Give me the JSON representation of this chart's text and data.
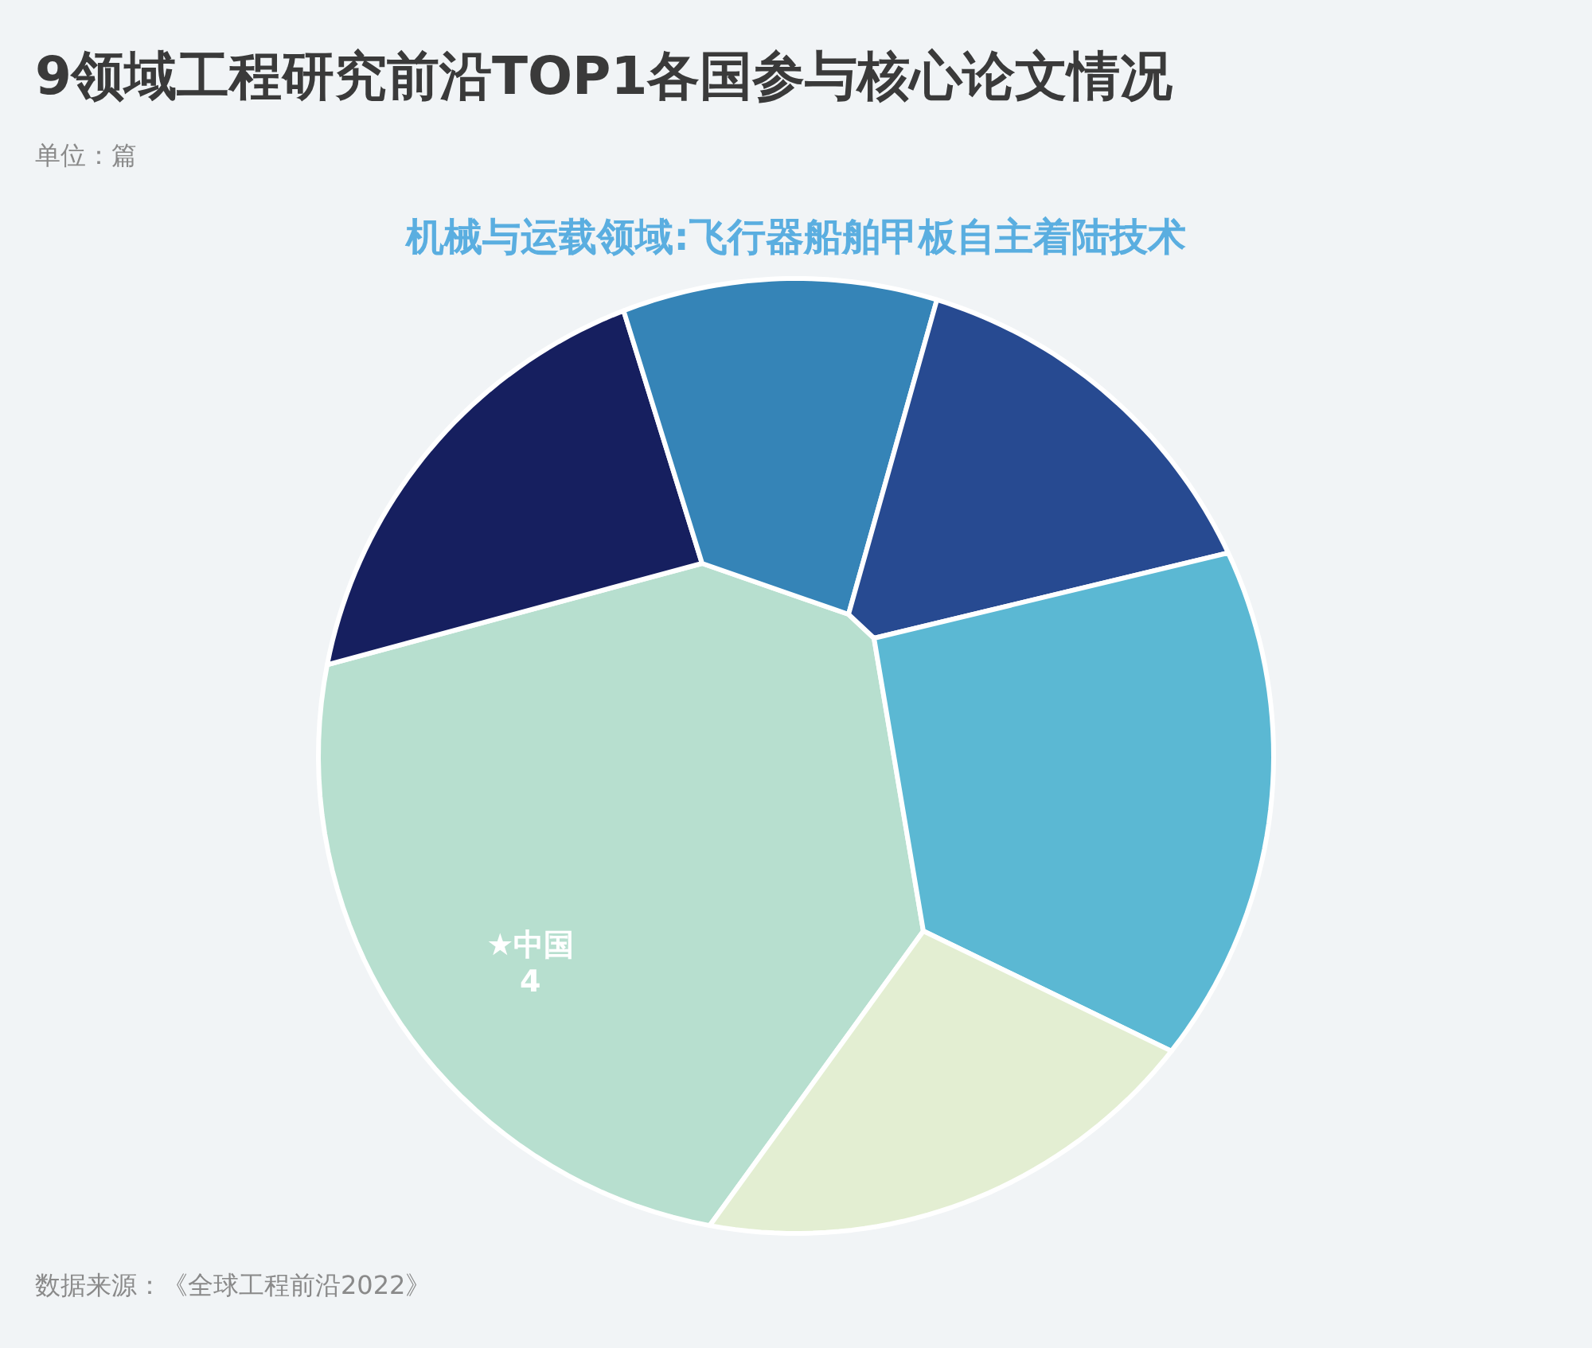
{
  "chart_data": {
    "type": "other",
    "title": "9领域工程研究前沿TOP1各国参与核心论文情况",
    "subtitle": "机械与运载领域:飞行器船舶甲板自主着陆技术",
    "annotations": [
      "单位：篇",
      "数据来源：《全球工程前沿2022》"
    ],
    "categories": [
      "★中国",
      null,
      null,
      null,
      null,
      null
    ],
    "values": [
      4,
      null,
      null,
      null,
      null,
      null
    ],
    "colors": [
      "#b7dfcf",
      "#161f5f",
      "#3584b7",
      "#274a91",
      "#5bb8d3",
      "#e3eed2"
    ],
    "data_labels": true
  }
}
